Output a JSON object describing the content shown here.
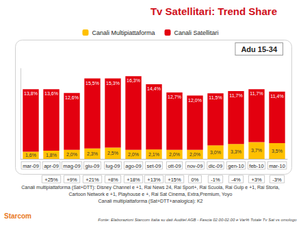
{
  "chart_data": {
    "type": "bar",
    "title": "Tv Satellitari: Trend Share",
    "subtitle": "Adu 15-34",
    "categories": [
      "mar-09",
      "apr-09",
      "mag-09",
      "giu-09",
      "lug-09",
      "ago-09",
      "set-09",
      "ott-09",
      "nov-09",
      "dic-09",
      "gen-10",
      "feb-10",
      "mar-10"
    ],
    "series": [
      {
        "name": "Canali Multipiattaforma",
        "color": "#FFC000",
        "values": [
          1.6,
          1.8,
          2.0,
          2.3,
          2.5,
          2.0,
          2.1,
          2.0,
          2.0,
          3.0,
          3.3,
          3.7,
          3.5
        ],
        "value_labels": [
          "1,6%",
          "1,8%",
          "2,0%",
          "2,3%",
          "2,5%",
          "2,0%",
          "2,1%",
          "2,0%",
          "2,0%",
          "3,0%",
          "3,3%",
          "3,7%",
          "3,5%"
        ]
      },
      {
        "name": "Canali Satellitari",
        "color": "#E3000F",
        "values": [
          13.8,
          13.6,
          12.6,
          15.5,
          15.3,
          16.3,
          14.4,
          12.7,
          12.0,
          11.5,
          11.7,
          11.7,
          11.4
        ],
        "value_labels": [
          "13,8%",
          "13,6%",
          "12,6%",
          "15,5%",
          "15,3%",
          "16,3%",
          "14,4%",
          "12,7%",
          "12,0%",
          "11,5%",
          "11,7%",
          "11,7%",
          "11,4%"
        ]
      }
    ],
    "growth_labels": [
      null,
      "+25%",
      "+9%",
      "+21%",
      "+8%",
      "+18%",
      "+13%",
      "+15%",
      "0%",
      "-1%",
      "-4%",
      "+3%",
      "-3%"
    ],
    "ylim": [
      0,
      20
    ],
    "stacked": true,
    "data_labels": true,
    "tick_labels": "x",
    "grid": false,
    "legend": "top",
    "notes": [
      "Canali multipiattaforma (Sat+DTT): Disney Channel e +1, Rai News 24, Rai Sport+, Rai Scuola, Rai Gulp e +1, Rai Storia,",
      "Cartoon Network e +1, Playhouse e +, Rai Sat Cinema, Extra,Premium, Yoyo",
      "Canali multipiattaforma (Sat+DTT+analogica): K2"
    ],
    "source": "Fonte: Elaborazioni Starcom Italia su dati Auditel AGB - Fascia 02.00-02.00 e Var% Totale Tv Sat vs omologo",
    "logo": "Starcom"
  }
}
